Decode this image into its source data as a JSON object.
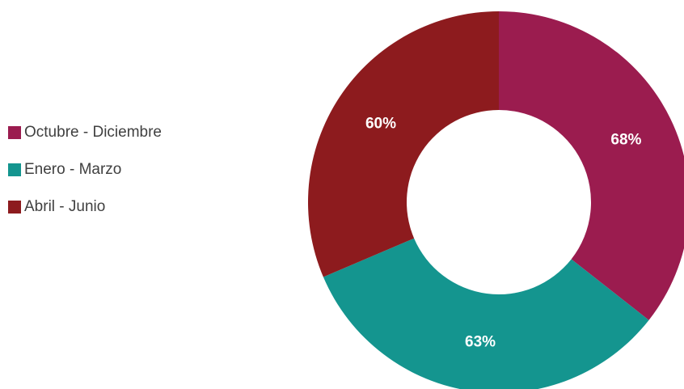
{
  "chart_data": {
    "type": "pie",
    "style": "donut",
    "categories": [
      "Octubre - Diciembre",
      "Enero - Marzo",
      "Abril - Junio"
    ],
    "values": [
      68,
      63,
      60
    ],
    "data_labels": [
      "68%",
      "63%",
      "60%"
    ],
    "colors": [
      "#9b1c4f",
      "#14958f",
      "#8d1b1e"
    ],
    "legend_position": "left",
    "title": ""
  },
  "legend": {
    "items": [
      {
        "label": "Octubre - Diciembre",
        "color": "#9b1c4f"
      },
      {
        "label": "Enero - Marzo",
        "color": "#14958f"
      },
      {
        "label": "Abril - Junio",
        "color": "#8d1b1e"
      }
    ]
  }
}
